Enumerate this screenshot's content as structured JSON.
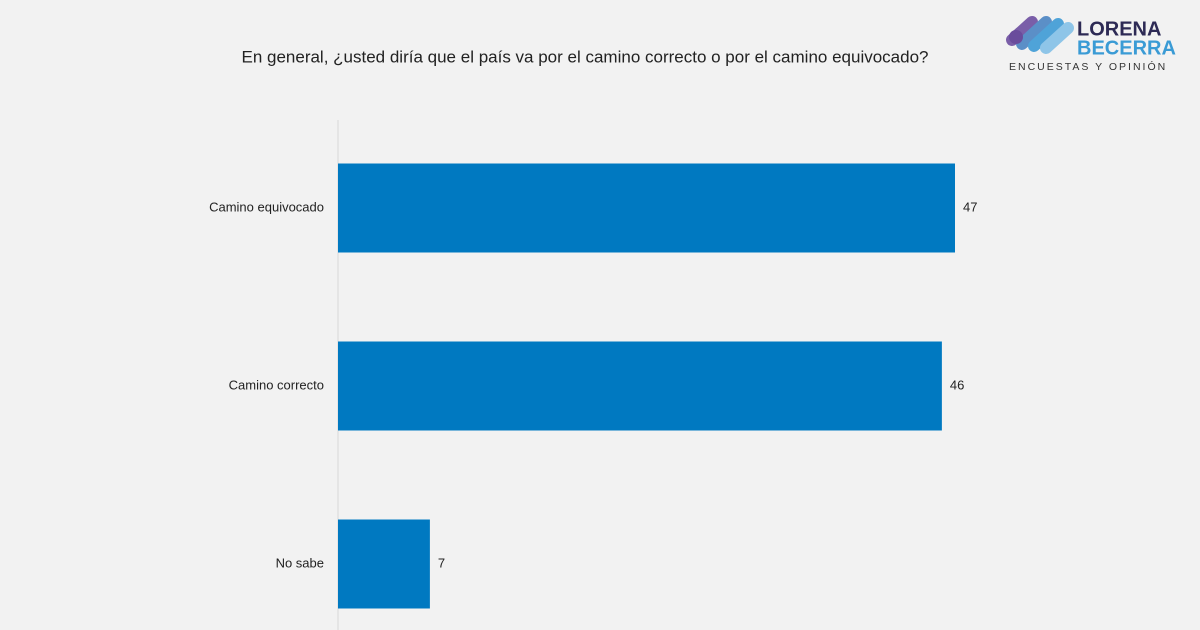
{
  "chart_data": {
    "type": "bar",
    "orientation": "horizontal",
    "title": "En general, ¿usted diría que el país va por el camino correcto o por el camino equivocado?",
    "categories": [
      "Camino equivocado",
      "Camino correcto",
      "No sabe"
    ],
    "values": [
      47,
      46,
      7
    ],
    "color": "#0079c1"
  },
  "brand": {
    "name_line1": "LORENA",
    "name_line2": "BECERRA",
    "tagline": "ENCUESTAS Y OPINIÓN"
  }
}
